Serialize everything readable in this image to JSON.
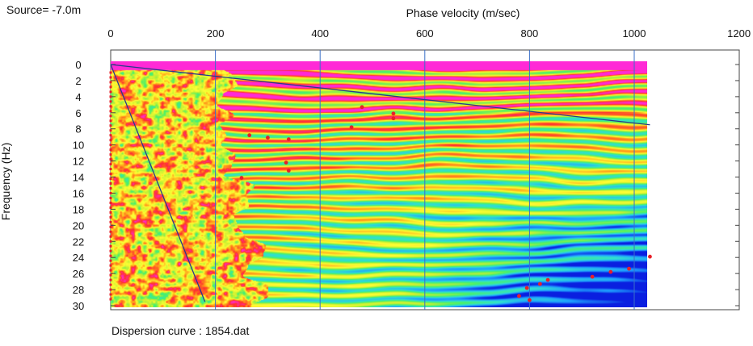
{
  "header": {
    "source_label": "Source= -7.0m",
    "footer_label": "Dispersion curve : 1854.dat"
  },
  "colors": {
    "background": "#ffffff",
    "frame": "#444444",
    "grid": "#3a6fc8",
    "line": "#2a3a8a",
    "points": "#e8202a",
    "colormap": [
      "#0a1fe0",
      "#1fa0ff",
      "#30e0d0",
      "#48f06a",
      "#c8f032",
      "#ffff33",
      "#ff9a1a",
      "#ff2f2f",
      "#ff2ad6"
    ]
  },
  "chart_data": {
    "type": "heatmap",
    "title": "",
    "xlabel": "Phase velocity (m/sec)",
    "ylabel": "Frequency (Hz)",
    "xlim": [
      0,
      1200
    ],
    "ylim": [
      0,
      30
    ],
    "y_inverted": true,
    "x_axis_position": "top",
    "xticks": [
      0,
      200,
      400,
      600,
      800,
      1000,
      1200
    ],
    "yticks": [
      0,
      2,
      4,
      6,
      8,
      10,
      12,
      14,
      16,
      18,
      20,
      22,
      24,
      26,
      28,
      30
    ],
    "x_gridlines": [
      200,
      400,
      600,
      800,
      1000
    ],
    "grid": "vertical",
    "data_extent": {
      "x": [
        0,
        1020
      ],
      "y": [
        0,
        30
      ]
    },
    "colormap_order": "low to high energy",
    "lines": [
      {
        "x": [
          0,
          1030
        ],
        "y": [
          0,
          7.5
        ]
      },
      {
        "x": [
          0,
          180
        ],
        "y": [
          0,
          29.5
        ]
      }
    ],
    "picked_points": [
      {
        "x": 480,
        "y": 5.3
      },
      {
        "x": 540,
        "y": 6.1
      },
      {
        "x": 540,
        "y": 6.7
      },
      {
        "x": 460,
        "y": 7.8
      },
      {
        "x": 265,
        "y": 8.8
      },
      {
        "x": 300,
        "y": 9.1
      },
      {
        "x": 340,
        "y": 9.3
      },
      {
        "x": 335,
        "y": 12.2
      },
      {
        "x": 340,
        "y": 13.2
      },
      {
        "x": 250,
        "y": 14.1
      },
      {
        "x": 1030,
        "y": 23.9
      },
      {
        "x": 990,
        "y": 25.4
      },
      {
        "x": 955,
        "y": 25.8
      },
      {
        "x": 920,
        "y": 26.4
      },
      {
        "x": 835,
        "y": 26.8
      },
      {
        "x": 820,
        "y": 27.3
      },
      {
        "x": 795,
        "y": 27.8
      },
      {
        "x": 780,
        "y": 28.8
      },
      {
        "x": 800,
        "y": 29.3
      }
    ],
    "picked_column_x": 0
  }
}
